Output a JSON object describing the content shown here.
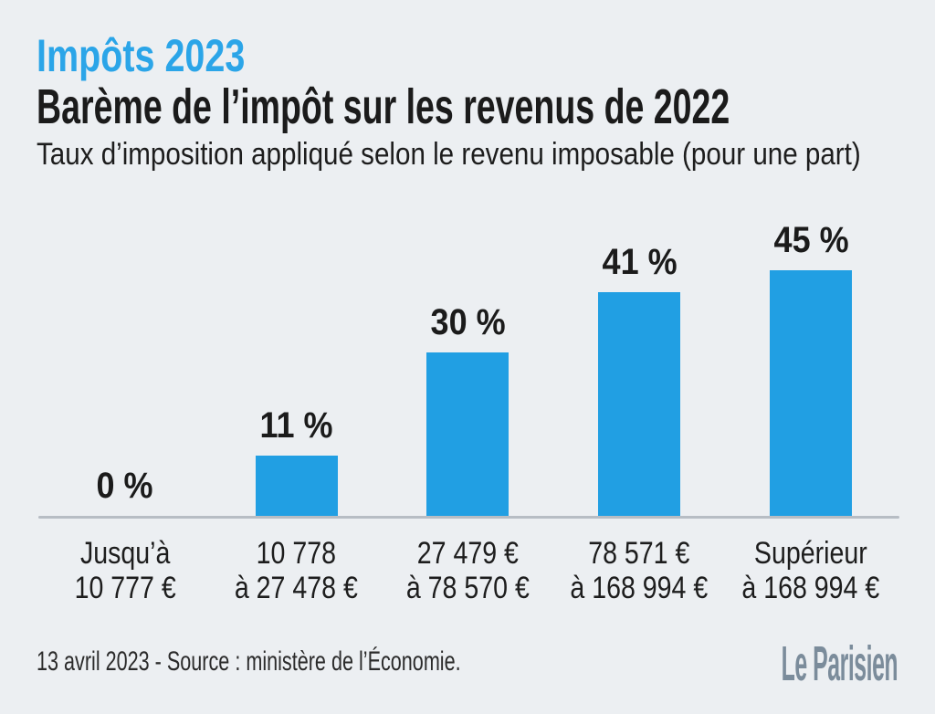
{
  "header": {
    "kicker": "Impôts 2023",
    "title": "Barème de l’impôt sur les revenus de 2022",
    "subtitle": "Taux d’imposition appliqué selon le revenu imposable (pour une part)"
  },
  "chart_data": {
    "type": "bar",
    "title": "Barème de l’impôt sur les revenus de 2022",
    "subtitle": "Taux d’imposition appliqué selon le revenu imposable (pour une part)",
    "unit": "%",
    "categories": [
      "Jusqu’à 10 777 €",
      "10 778 à 27 478 €",
      "27 479 € à 78 570 €",
      "78 571 € à 168 994 €",
      "Supérieur à 168 994 €"
    ],
    "category_lines": [
      [
        "Jusqu’à",
        "10 777 €"
      ],
      [
        "10 778",
        "à 27 478 €"
      ],
      [
        "27 479 €",
        "à 78 570 €"
      ],
      [
        "78 571 €",
        "à 168 994 €"
      ],
      [
        "Supérieur",
        "à 168 994 €"
      ]
    ],
    "values": [
      0,
      11,
      30,
      41,
      45
    ],
    "value_labels": [
      "0 %",
      "11 %",
      "30 %",
      "41 %",
      "45 %"
    ],
    "ylim": [
      0,
      45
    ],
    "grid": false,
    "legend": false,
    "bar_color": "#219FE3"
  },
  "footer": {
    "source_line": "13 avril 2023 - Source : ministère de l’Économie.",
    "brand": "Le Parisien"
  },
  "colors": {
    "background": "#ECEFF2",
    "bar": "#219FE3",
    "accent": "#2BA5E8",
    "text": "#1B1B1B",
    "axis_line": "#B7BDC4",
    "brand": "#7B8C9B"
  }
}
